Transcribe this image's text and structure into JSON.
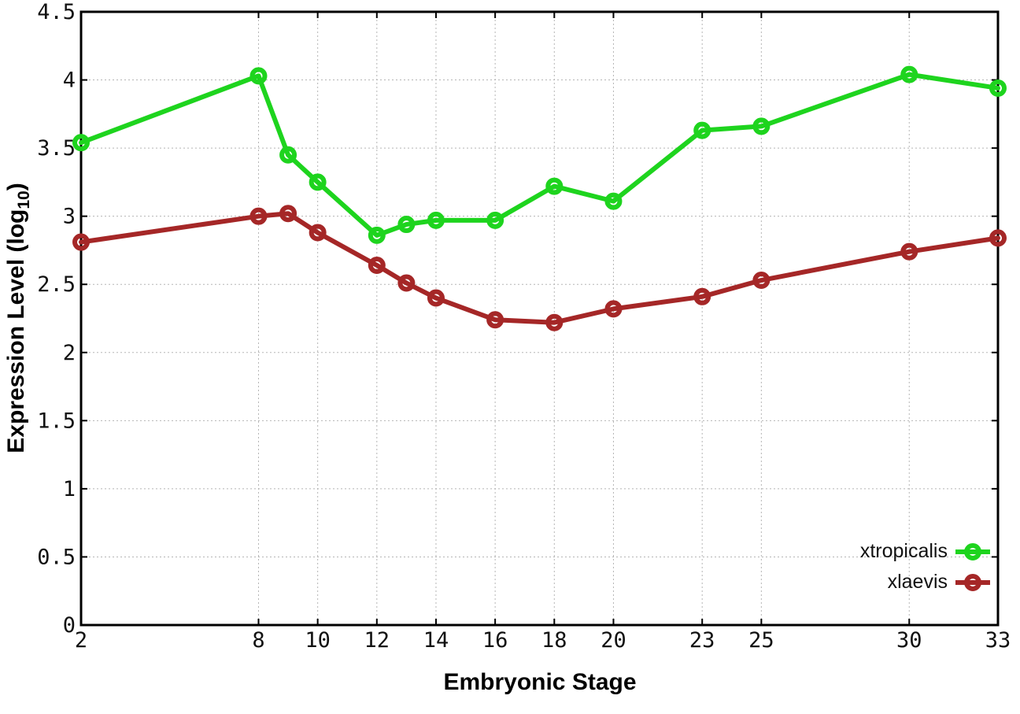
{
  "chart_data": {
    "type": "line",
    "title": "",
    "xlabel": "Embryonic Stage",
    "ylabel": "Expression Level (log10)",
    "ylabel_prefix": "Expression Level (log",
    "ylabel_sub": "10",
    "ylabel_suffix": ")",
    "x": [
      2,
      8,
      9,
      10,
      12,
      13,
      14,
      16,
      18,
      20,
      23,
      25,
      30,
      33
    ],
    "series": [
      {
        "name": "xtropicalis",
        "color": "#1ed41e",
        "values": [
          3.54,
          4.03,
          3.45,
          3.25,
          2.86,
          2.94,
          2.97,
          2.97,
          3.22,
          3.11,
          3.63,
          3.66,
          4.04,
          3.94
        ]
      },
      {
        "name": "xlaevis",
        "color": "#a52727",
        "values": [
          2.81,
          3.0,
          3.02,
          2.88,
          2.64,
          2.51,
          2.4,
          2.24,
          2.22,
          2.32,
          2.41,
          2.53,
          2.74,
          2.84
        ]
      }
    ],
    "x_ticks": [
      {
        "value": 2,
        "label": "2"
      },
      {
        "value": 8,
        "label": "8"
      },
      {
        "value": 10,
        "label": "10"
      },
      {
        "value": 12,
        "label": "12"
      },
      {
        "value": 14,
        "label": "14"
      },
      {
        "value": 16,
        "label": "16"
      },
      {
        "value": 18,
        "label": "18"
      },
      {
        "value": 20,
        "label": "20"
      },
      {
        "value": 23,
        "label": "23"
      },
      {
        "value": 25,
        "label": "25"
      },
      {
        "value": 30,
        "label": "30"
      },
      {
        "value": 33,
        "label": "33"
      }
    ],
    "y_ticks": [
      {
        "value": 0,
        "label": "0"
      },
      {
        "value": 0.5,
        "label": "0.5"
      },
      {
        "value": 1,
        "label": "1"
      },
      {
        "value": 1.5,
        "label": "1.5"
      },
      {
        "value": 2,
        "label": "2"
      },
      {
        "value": 2.5,
        "label": "2.5"
      },
      {
        "value": 3,
        "label": "3"
      },
      {
        "value": 3.5,
        "label": "3.5"
      },
      {
        "value": 4,
        "label": "4"
      },
      {
        "value": 4.5,
        "label": "4.5"
      }
    ],
    "xlim": [
      2,
      33
    ],
    "ylim": [
      0,
      4.5
    ],
    "grid": true,
    "legend_position": "bottom-right",
    "colors": {
      "border": "#000000",
      "grid": "#b5b5b5",
      "background": "#ffffff",
      "text": "#111111"
    }
  }
}
